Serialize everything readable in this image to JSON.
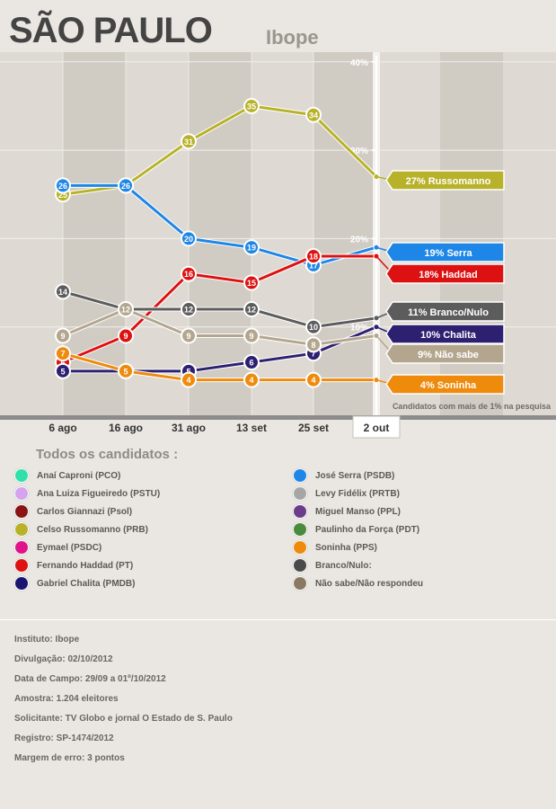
{
  "header": {
    "title": "SÃO PAULO",
    "subtitle": "Ibope"
  },
  "chart_data": {
    "type": "line",
    "categories": [
      "6 ago",
      "16 ago",
      "31 ago",
      "13 set",
      "25 set",
      "2 out"
    ],
    "y_ticks": [
      "40%",
      "30%",
      "20%",
      "10%"
    ],
    "ylim": [
      0,
      40
    ],
    "footnote": "Candidatos com mais de 1% na pesquisa",
    "series": [
      {
        "name": "Russomanno",
        "color": "#b8b22a",
        "values": [
          25,
          26,
          31,
          35,
          34,
          27
        ],
        "labels": [
          "25",
          "26",
          "31",
          "35",
          "34",
          ""
        ],
        "tag": "27% Russomanno"
      },
      {
        "name": "Serra",
        "color": "#1e86e6",
        "values": [
          26,
          26,
          20,
          19,
          17,
          19
        ],
        "labels": [
          "26",
          "26",
          "20",
          "19",
          "17",
          ""
        ],
        "tag": "19% Serra"
      },
      {
        "name": "Haddad",
        "color": "#dd1111",
        "values": [
          6,
          9,
          16,
          15,
          18,
          18
        ],
        "labels": [
          "6",
          "9",
          "16",
          "15",
          "18",
          ""
        ],
        "tag": "18% Haddad"
      },
      {
        "name": "Branco/Nulo",
        "color": "#5c5c5c",
        "values": [
          14,
          12,
          12,
          12,
          10,
          11
        ],
        "labels": [
          "14",
          "12",
          "12",
          "12",
          "10",
          ""
        ],
        "tag": "11% Branco/Nulo"
      },
      {
        "name": "Chalita",
        "color": "#2e2070",
        "values": [
          5,
          5,
          5,
          6,
          7,
          10
        ],
        "labels": [
          "5",
          "5",
          "5",
          "6",
          "7",
          ""
        ],
        "tag": "10% Chalita"
      },
      {
        "name": "Não sabe",
        "color": "#b4a68e",
        "values": [
          9,
          12,
          9,
          9,
          8,
          9
        ],
        "labels": [
          "9",
          "12",
          "9",
          "9",
          "8",
          ""
        ],
        "tag": "9% Não sabe"
      },
      {
        "name": "Soninha",
        "color": "#ee8a0c",
        "values": [
          7,
          5,
          4,
          4,
          4,
          4
        ],
        "labels": [
          "7",
          "5",
          "4",
          "4",
          "4",
          ""
        ],
        "tag": "4% Soninha"
      }
    ]
  },
  "legend": {
    "title": "Todos os candidatos :",
    "left": [
      {
        "label": "Anaí Caproni (PCO)",
        "color": "#2fe0a8"
      },
      {
        "label": "Ana Luiza Figueiredo (PSTU)",
        "color": "#d4a4ee"
      },
      {
        "label": "Carlos Giannazi (Psol)",
        "color": "#8a1414"
      },
      {
        "label": "Celso Russomanno (PRB)",
        "color": "#b8b22a"
      },
      {
        "label": "Eymael (PSDC)",
        "color": "#e0148a"
      },
      {
        "label": "Fernando Haddad (PT)",
        "color": "#dd1111"
      },
      {
        "label": "Gabriel Chalita (PMDB)",
        "color": "#1a1470"
      }
    ],
    "right": [
      {
        "label": "José Serra (PSDB)",
        "color": "#1e86e6"
      },
      {
        "label": "Levy Fidélix (PRTB)",
        "color": "#a6a6a6"
      },
      {
        "label": "Miguel Manso (PPL)",
        "color": "#6a3c8a"
      },
      {
        "label": "Paulinho da Força (PDT)",
        "color": "#4a8a3c"
      },
      {
        "label": "Soninha (PPS)",
        "color": "#ee8a0c"
      },
      {
        "label": "Branco/Nulo:",
        "color": "#4a4a4a"
      },
      {
        "label": "Não sabe/Não respondeu",
        "color": "#8a7860"
      }
    ]
  },
  "info": [
    "Instituto: Ibope",
    "Divulgação: 02/10/2012",
    "Data de Campo: 29/09 a 01º/10/2012",
    "Amostra: 1.204 eleitores",
    "Solicitante: TV Globo e jornal O Estado de S. Paulo",
    "Registro: SP-1474/2012",
    "Margem de erro: 3 pontos"
  ]
}
